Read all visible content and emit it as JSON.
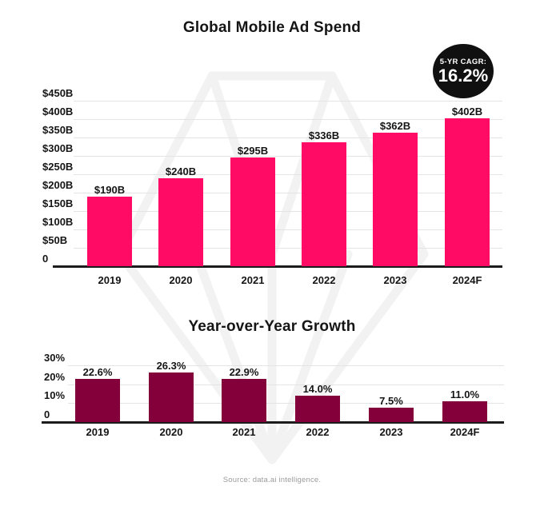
{
  "page": {
    "background": "#ffffff",
    "source_note": "Source: data.ai intelligence."
  },
  "badge": {
    "label": "5-YR CAGR:",
    "value": "16.2%",
    "bg_color": "#101010",
    "text_color": "#ffffff"
  },
  "colors": {
    "spend_bar": "#FF0A64",
    "growth_bar": "#84003B",
    "gridline": "#e4e4e4",
    "axis_line": "#1c1c1c",
    "label_text": "#151515",
    "source_text": "#9b9b9b",
    "watermark": "#f2f2f2"
  },
  "icons": [
    {
      "name": "data-ai-gem-watermark",
      "description": "faint diamond/gem logo outline behind charts"
    }
  ],
  "chart_data": [
    {
      "type": "bar",
      "title": "Global Mobile Ad Spend",
      "unit": "USD billions",
      "categories": [
        "2019",
        "2020",
        "2021",
        "2022",
        "2023",
        "2024F"
      ],
      "values": [
        190,
        240,
        295,
        336,
        362,
        402
      ],
      "value_labels": [
        "$190B",
        "$240B",
        "$295B",
        "$336B",
        "$362B",
        "$402B"
      ],
      "y_ticks": [
        {
          "value": 450,
          "label": "$450B"
        },
        {
          "value": 400,
          "label": "$400B"
        },
        {
          "value": 350,
          "label": "$350B"
        },
        {
          "value": 300,
          "label": "$300B"
        },
        {
          "value": 250,
          "label": "$250B"
        },
        {
          "value": 200,
          "label": "$200B"
        },
        {
          "value": 150,
          "label": "$150B"
        },
        {
          "value": 100,
          "label": "$100B"
        },
        {
          "value": 50,
          "label": "$50B"
        },
        {
          "value": 0,
          "label": "0"
        }
      ],
      "ylim": [
        0,
        450
      ],
      "grid": true,
      "legend": null,
      "bar_color": "#FF0A64",
      "annotation": {
        "text": "5-YR CAGR: 16.2%",
        "position": "top-right"
      }
    },
    {
      "type": "bar",
      "title": "Year-over-Year Growth",
      "unit": "percent",
      "categories": [
        "2019",
        "2020",
        "2021",
        "2022",
        "2023",
        "2024F"
      ],
      "values": [
        22.6,
        26.3,
        22.9,
        14.0,
        7.5,
        11.0
      ],
      "value_labels": [
        "22.6%",
        "26.3%",
        "22.9%",
        "14.0%",
        "7.5%",
        "11.0%"
      ],
      "y_ticks": [
        {
          "value": 30,
          "label": "30%"
        },
        {
          "value": 20,
          "label": "20%"
        },
        {
          "value": 10,
          "label": "10%"
        },
        {
          "value": 0,
          "label": "0"
        }
      ],
      "ylim": [
        0,
        30
      ],
      "grid": true,
      "legend": null,
      "bar_color": "#84003B"
    }
  ]
}
